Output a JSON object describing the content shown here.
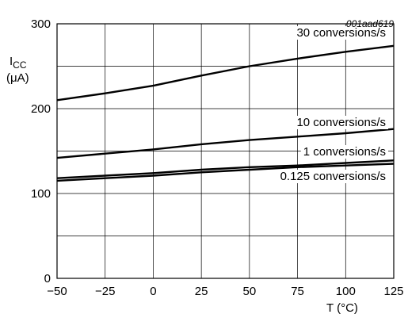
{
  "chart_data": {
    "type": "line",
    "reference": "001aad619",
    "ylabel_main": "I",
    "ylabel_sub": "CC",
    "ylabel_unit": "(μA)",
    "xlabel": "T (°C)",
    "xlim": [
      -50,
      125
    ],
    "ylim": [
      0,
      300
    ],
    "x_ticks": [
      -50,
      -25,
      0,
      25,
      50,
      75,
      100,
      125
    ],
    "x_tick_labels": [
      "−50",
      "−25",
      "0",
      "25",
      "50",
      "75",
      "100",
      "125"
    ],
    "y_ticks": [
      0,
      100,
      200,
      300
    ],
    "y_tick_labels": [
      "0",
      "100",
      "200",
      "300"
    ],
    "grid": true,
    "series": [
      {
        "name": "30 conversions/s",
        "x": [
          -50,
          -25,
          0,
          25,
          50,
          75,
          100,
          125
        ],
        "y": [
          210,
          218,
          227,
          239,
          250,
          259,
          267,
          274
        ]
      },
      {
        "name": "10 conversions/s",
        "x": [
          -50,
          -25,
          0,
          25,
          50,
          75,
          100,
          125
        ],
        "y": [
          142,
          147,
          152,
          158,
          163,
          167,
          171,
          176
        ]
      },
      {
        "name": "1 conversions/s",
        "x": [
          -50,
          -25,
          0,
          25,
          50,
          75,
          100,
          125
        ],
        "y": [
          118,
          121,
          124,
          128,
          131,
          133,
          136,
          139
        ]
      },
      {
        "name": "0.125 conversions/s",
        "x": [
          -50,
          -25,
          0,
          25,
          50,
          75,
          100,
          125
        ],
        "y": [
          115,
          118,
          121,
          125,
          128,
          131,
          133,
          135
        ]
      }
    ]
  }
}
